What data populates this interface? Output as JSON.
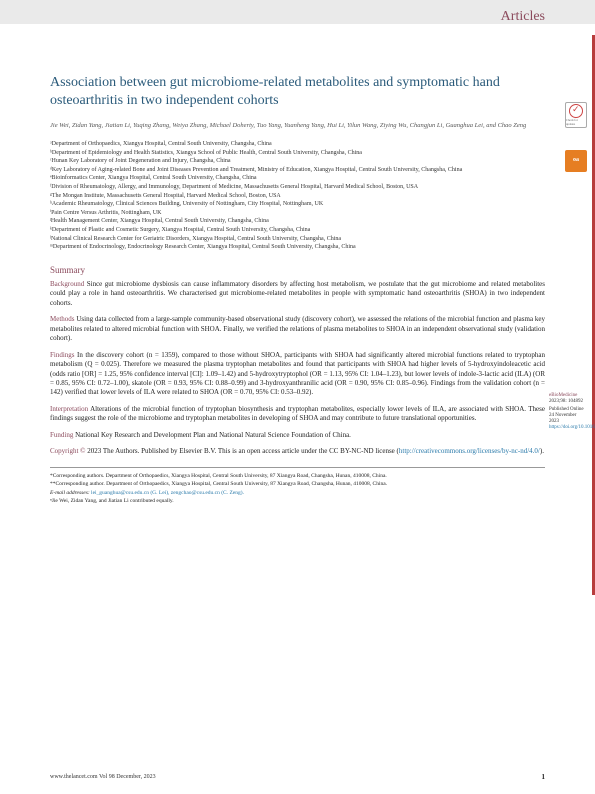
{
  "section_label": "Articles",
  "title": "Association between gut microbiome-related metabolites and symptomatic hand osteoarthritis in two independent cohorts",
  "authors": "Jie Wei, Zidan Yang, Jiatian Li, Yuqing Zhang, Weiya Zhang, Michael Doherty, Tuo Yang, Yuanheng Yang, Hui Li, Yilun Wang, Ziying Wu, Changjun Li, Guanghua Lei, and Chao Zeng",
  "affiliations": [
    "ᵃDepartment of Orthopaedics, Xiangya Hospital, Central South University, Changsha, China",
    "ᵇDepartment of Epidemiology and Health Statistics, Xiangya School of Public Health, Central South University, Changsha, China",
    "ᶜHunan Key Laboratory of Joint Degeneration and Injury, Changsha, China",
    "ᵈKey Laboratory of Aging-related Bone and Joint Diseases Prevention and Treatment, Ministry of Education, Xiangya Hospital, Central South University, Changsha, China",
    "ᵉBioinformatics Center, Xiangya Hospital, Central South University, Changsha, China",
    "ᶠDivision of Rheumatology, Allergy, and Immunology, Department of Medicine, Massachusetts General Hospital, Harvard Medical School, Boston, USA",
    "ᵍThe Mongan Institute, Massachusetts General Hospital, Harvard Medical School, Boston, USA",
    "ʰAcademic Rheumatology, Clinical Sciences Building, University of Nottingham, City Hospital, Nottingham, UK",
    "ⁱPain Centre Versus Arthritis, Nottingham, UK",
    "ʲHealth Management Center, Xiangya Hospital, Central South University, Changsha, China",
    "ᵏDepartment of Plastic and Cosmetic Surgery, Xiangya Hospital, Central South University, Changsha, China",
    "ˡNational Clinical Research Center for Geriatric Disorders, Xiangya Hospital, Central South University, Changsha, China",
    "ᵐDepartment of Endocrinology, Endocrinology Research Center, Xiangya Hospital, Central South University, Changsha, China"
  ],
  "summary_heading": "Summary",
  "background": "Since gut microbiome dysbiosis can cause inflammatory disorders by affecting host metabolism, we postulate that the gut microbiome and related metabolites could play a role in hand osteoarthritis. We characterised gut microbiome-related metabolites in people with symptomatic hand osteoarthritis (SHOA) in two independent cohorts.",
  "methods": "Using data collected from a large-sample community-based observational study (discovery cohort), we assessed the relations of the microbial function and plasma key metabolites related to altered microbial function with SHOA. Finally, we verified the relations of plasma metabolites to SHOA in an independent observational study (validation cohort).",
  "findings": "In the discovery cohort (n = 1359), compared to those without SHOA, participants with SHOA had significantly altered microbial functions related to tryptophan metabolism (Q = 0.025). Therefore we measured the plasma tryptophan metabolites and found that participants with SHOA had higher levels of 5-hydroxyindoleacetic acid (odds ratio [OR] = 1.25, 95% confidence interval [CI]: 1.09–1.42) and 5-hydroxytryptophol (OR = 1.13, 95% CI: 1.04–1.23), but lower levels of indole-3-lactic acid (ILA) (OR = 0.85, 95% CI: 0.72–1.00), skatole (OR = 0.93, 95% CI: 0.88–0.99) and 3-hydroxyanthranilic acid (OR = 0.90, 95% CI: 0.85–0.96). Findings from the validation cohort (n = 142) verified that lower levels of ILA were related to SHOA (OR = 0.70, 95% CI: 0.53–0.92).",
  "interpretation": "Alterations of the microbial function of tryptophan biosynthesis and tryptophan metabolites, especially lower levels of ILA, are associated with SHOA. These findings suggest the role of the microbiome and tryptophan metabolites in developing of SHOA and may contribute to future translational opportunities.",
  "funding": "National Key Research and Development Plan and National Natural Science Foundation of China.",
  "copyright": "2023 The Authors. Published by Elsevier B.V. This is an open access article under the CC BY-NC-ND license (",
  "license_url": "http://creativecommons.org/licenses/by-nc-nd/4.0/",
  "footer_notes": [
    "*Corresponding authors. Department of Orthopaedics, Xiangya Hospital, Central South University, 87 Xiangya Road, Changsha, Hunan, 410008, China.",
    "**Corresponding author. Department of Orthopaedics, Xiangya Hospital, Central South University, 87 Xiangya Road, Changsha, Hunan, 410008, China."
  ],
  "email_label": "E-mail addresses: ",
  "emails": "lei_guanghua@csu.edu.cn (G. Lei), zengchao@csu.edu.cn (C. Zeng).",
  "contribution_note": "ⁿJie Wei, Zidan Yang, and Jiatian Li contributed equally.",
  "journal_ref": "www.thelancet.com Vol 98 December, 2023",
  "page_number": "1",
  "sidebar": {
    "journal": "eBioMedicine",
    "ref": "2023;98: 104892",
    "published": "Published Online 24 November 2023",
    "doi": "https://doi.org/10.1016/j.ebiom.2023.104892"
  },
  "oa_label": "oa",
  "check_label": "Check for updates",
  "heads": {
    "background": "Background ",
    "methods": "Methods ",
    "findings": "Findings ",
    "interpretation": "Interpretation ",
    "funding": "Funding ",
    "copyright": "Copyright © "
  },
  "colors": {
    "heading": "#8b4a5c",
    "title": "#2a5a7a",
    "accent": "#b73c3c",
    "link": "#2a7aaa",
    "oa_bg": "#e67e22"
  }
}
